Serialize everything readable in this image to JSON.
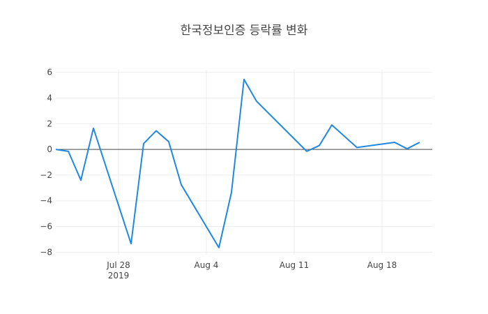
{
  "chart_data": {
    "type": "line",
    "title": "한국정보인증 등락률 변화",
    "xlabel": "",
    "ylabel": "",
    "x_range": [
      "2019-07-23",
      "2019-08-22"
    ],
    "ylim": [
      -8.2,
      6.2
    ],
    "x_ticks": [
      {
        "date": "2019-07-28",
        "label": "Jul 28",
        "sublabel": "2019"
      },
      {
        "date": "2019-08-04",
        "label": "Aug 4",
        "sublabel": ""
      },
      {
        "date": "2019-08-11",
        "label": "Aug 11",
        "sublabel": ""
      },
      {
        "date": "2019-08-18",
        "label": "Aug 18",
        "sublabel": ""
      }
    ],
    "y_ticks": [
      6,
      4,
      2,
      0,
      -2,
      -4,
      -6,
      -8
    ],
    "grid": true,
    "zero_line": true,
    "series": [
      {
        "name": "",
        "color": "#1f88e0",
        "x": [
          "2019-07-23",
          "2019-07-24",
          "2019-07-25",
          "2019-07-26",
          "2019-07-29",
          "2019-07-30",
          "2019-07-31",
          "2019-08-01",
          "2019-08-02",
          "2019-08-05",
          "2019-08-06",
          "2019-08-07",
          "2019-08-08",
          "2019-08-12",
          "2019-08-13",
          "2019-08-14",
          "2019-08-16",
          "2019-08-19",
          "2019-08-20",
          "2019-08-21"
        ],
        "y": [
          0,
          -0.15,
          -2.4,
          1.65,
          -7.35,
          0.45,
          1.45,
          0.6,
          -2.75,
          -7.65,
          -3.35,
          5.45,
          3.75,
          -0.15,
          0.3,
          1.9,
          0.15,
          0.55,
          0.05,
          0.55
        ]
      }
    ]
  }
}
